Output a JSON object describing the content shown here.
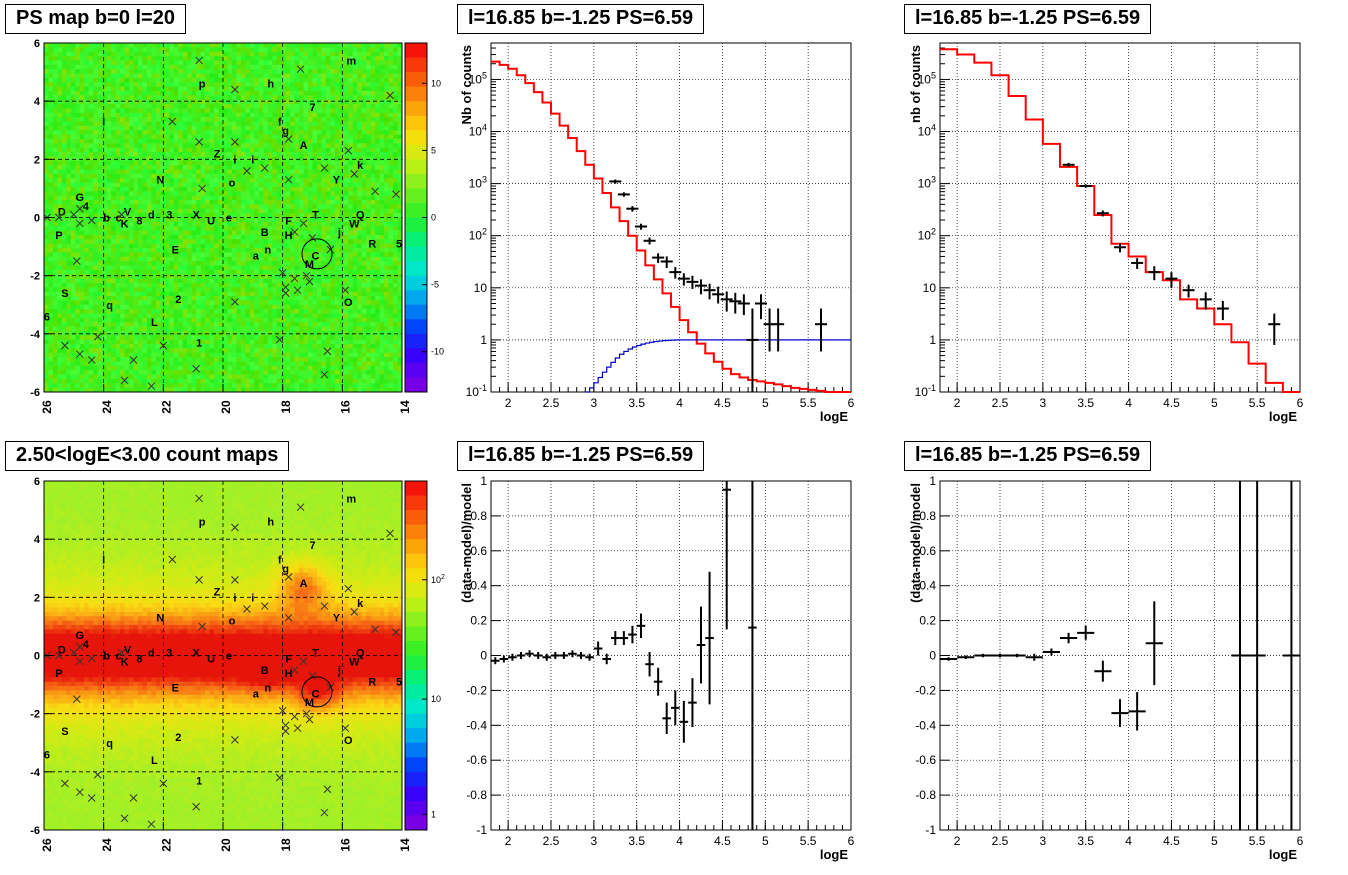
{
  "panels": {
    "map_top_title": "PS map b=0 l=20",
    "map_bottom_title": "2.50<logE<3.00 count maps",
    "spec_title": "l=16.85 b=-1.25 PS=6.59"
  },
  "chart_data": [
    {
      "type": "heatmap",
      "title": "PS map b=0 l=20",
      "xlim": [
        26,
        14
      ],
      "ylim": [
        -6,
        6
      ],
      "x_ticks": [
        "26",
        "24",
        "22",
        "20",
        "18",
        "16",
        "14"
      ],
      "y_ticks": [
        "-6",
        "-4",
        "-2",
        "0",
        "2",
        "4",
        "6"
      ],
      "colorbar_ticks": [
        "-10",
        "-5",
        "0",
        "5",
        "10"
      ],
      "colorbar_range": [
        -13,
        13
      ],
      "grid": true,
      "source_labels": [
        {
          "t": "m",
          "x": 15.7,
          "y": 5.4
        },
        {
          "t": "p",
          "x": 20.7,
          "y": 4.6
        },
        {
          "t": "h",
          "x": 18.4,
          "y": 4.6
        },
        {
          "t": "7",
          "x": 17.0,
          "y": 3.8
        },
        {
          "t": "l",
          "x": 24.0,
          "y": 3.3
        },
        {
          "t": "f",
          "x": 18.1,
          "y": 3.3
        },
        {
          "t": "g",
          "x": 17.9,
          "y": 3.0
        },
        {
          "t": "A",
          "x": 17.3,
          "y": 2.5
        },
        {
          "t": "Z",
          "x": 20.2,
          "y": 2.2
        },
        {
          "t": "i",
          "x": 19.6,
          "y": 2.0
        },
        {
          "t": "i",
          "x": 19.0,
          "y": 2.0
        },
        {
          "t": "k",
          "x": 15.4,
          "y": 1.8
        },
        {
          "t": "N",
          "x": 22.1,
          "y": 1.3
        },
        {
          "t": "o",
          "x": 19.7,
          "y": 1.2
        },
        {
          "t": "Y",
          "x": 16.2,
          "y": 1.3
        },
        {
          "t": "G",
          "x": 24.8,
          "y": 0.7
        },
        {
          "t": "4",
          "x": 24.6,
          "y": 0.4
        },
        {
          "t": "D",
          "x": 25.4,
          "y": 0.2
        },
        {
          "t": "b",
          "x": 23.9,
          "y": 0.0
        },
        {
          "t": "c",
          "x": 23.5,
          "y": 0.0
        },
        {
          "t": "V",
          "x": 23.2,
          "y": 0.2
        },
        {
          "t": "K",
          "x": 23.3,
          "y": -0.2
        },
        {
          "t": "8",
          "x": 22.8,
          "y": -0.1
        },
        {
          "t": "d",
          "x": 22.4,
          "y": 0.1
        },
        {
          "t": "3",
          "x": 21.8,
          "y": 0.1
        },
        {
          "t": "X",
          "x": 20.9,
          "y": 0.1
        },
        {
          "t": "U",
          "x": 20.4,
          "y": -0.1
        },
        {
          "t": "e",
          "x": 19.8,
          "y": 0.0
        },
        {
          "t": "F",
          "x": 17.8,
          "y": -0.1
        },
        {
          "t": "T",
          "x": 16.9,
          "y": 0.1
        },
        {
          "t": "Q",
          "x": 15.4,
          "y": 0.1
        },
        {
          "t": "W",
          "x": 15.6,
          "y": -0.2
        },
        {
          "t": "P",
          "x": 25.5,
          "y": -0.6
        },
        {
          "t": "B",
          "x": 18.6,
          "y": -0.5
        },
        {
          "t": "H",
          "x": 17.8,
          "y": -0.6
        },
        {
          "t": "j",
          "x": 16.1,
          "y": -0.5
        },
        {
          "t": "R",
          "x": 15.0,
          "y": -0.9
        },
        {
          "t": "5",
          "x": 14.1,
          "y": -0.9
        },
        {
          "t": "E",
          "x": 21.6,
          "y": -1.1
        },
        {
          "t": "n",
          "x": 18.5,
          "y": -1.1
        },
        {
          "t": "a",
          "x": 18.9,
          "y": -1.3
        },
        {
          "t": "C",
          "x": 16.9,
          "y": -1.3
        },
        {
          "t": "M",
          "x": 17.1,
          "y": -1.6
        },
        {
          "t": "S",
          "x": 25.3,
          "y": -2.6
        },
        {
          "t": "2",
          "x": 21.5,
          "y": -2.8
        },
        {
          "t": "q",
          "x": 23.8,
          "y": -3.0
        },
        {
          "t": "O",
          "x": 15.8,
          "y": -2.9
        },
        {
          "t": "6",
          "x": 25.9,
          "y": -3.4
        },
        {
          "t": "L",
          "x": 22.3,
          "y": -3.6
        },
        {
          "t": "1",
          "x": 20.8,
          "y": -4.3
        }
      ],
      "circle": {
        "x": 16.85,
        "y": -1.25
      }
    },
    {
      "type": "heatmap",
      "title": "2.50<logE<3.00 count maps",
      "xlim": [
        26,
        14
      ],
      "ylim": [
        -6,
        6
      ],
      "x_ticks": [
        "26",
        "24",
        "22",
        "20",
        "18",
        "16",
        "14"
      ],
      "y_ticks": [
        "-6",
        "-4",
        "-2",
        "0",
        "2",
        "4",
        "6"
      ],
      "colorbar_ticks": [
        "1",
        "10",
        "10^2"
      ],
      "colorbar_scale": "log",
      "grid": true
    },
    {
      "type": "line",
      "title": "l=16.85 b=-1.25 PS=6.59",
      "xlabel": "logE",
      "ylabel": "Nb of counts",
      "xlim": [
        1.8,
        6.0
      ],
      "ylim": [
        0.1,
        500000
      ],
      "yscale": "log",
      "x_ticks": [
        "2",
        "2.5",
        "3",
        "3.5",
        "4",
        "4.5",
        "5",
        "5.5",
        "6"
      ],
      "y_ticks": [
        "10^-1",
        "1",
        "10",
        "10^2",
        "10^3",
        "10^4",
        "10^5"
      ],
      "grid": true,
      "series": [
        {
          "color": "#ff0000",
          "step_width": 0.1,
          "x": [
            1.8,
            1.9,
            2.0,
            2.1,
            2.2,
            2.3,
            2.4,
            2.5,
            2.6,
            2.7,
            2.8,
            2.9,
            3.0,
            3.1,
            3.2,
            3.3,
            3.4,
            3.5,
            3.6,
            3.7,
            3.8,
            3.9,
            4.0,
            4.1,
            4.2,
            4.3,
            4.4,
            4.5,
            4.6,
            4.7,
            4.8,
            4.9,
            5.0,
            5.1,
            5.2,
            5.3,
            5.4,
            5.5,
            5.6,
            5.7,
            5.8,
            5.9
          ],
          "values": [
            220000,
            190000,
            160000,
            120000,
            85000,
            57000,
            36000,
            22000,
            13000,
            7500,
            4200,
            2300,
            1250,
            660,
            350,
            190,
            100,
            52,
            27,
            14.5,
            7.8,
            4.3,
            2.4,
            1.4,
            0.85,
            0.55,
            0.38,
            0.28,
            0.22,
            0.19,
            0.17,
            0.16,
            0.15,
            0.14,
            0.13,
            0.12,
            0.115,
            0.11,
            0.105,
            0.1,
            0.1,
            0.1
          ]
        },
        {
          "color": "#0000cc",
          "step_width": 0.05,
          "x": [
            2.9,
            2.95,
            3.0,
            3.05,
            3.1,
            3.15,
            3.2,
            3.25,
            3.3,
            3.35,
            3.4,
            3.45,
            3.5,
            3.55,
            3.6,
            3.65,
            3.7,
            3.75,
            3.8,
            3.85,
            3.9,
            3.95,
            4.0
          ],
          "values": [
            0.1,
            0.12,
            0.15,
            0.19,
            0.24,
            0.3,
            0.37,
            0.45,
            0.53,
            0.6,
            0.67,
            0.73,
            0.78,
            0.83,
            0.87,
            0.9,
            0.93,
            0.95,
            0.97,
            0.98,
            0.99,
            1.0,
            1.0
          ],
          "flat_to": 6.0,
          "flat_value": 1.0
        },
        {
          "color": "#000000",
          "type": "points",
          "x": [
            3.25,
            3.35,
            3.45,
            3.55,
            3.65,
            3.75,
            3.85,
            3.95,
            4.05,
            4.15,
            4.25,
            4.35,
            4.45,
            4.55,
            4.65,
            4.75,
            4.85,
            4.95,
            5.05,
            5.15,
            5.65
          ],
          "values": [
            1100,
            620,
            330,
            150,
            80,
            38,
            32,
            20,
            15,
            13,
            11,
            9,
            7.5,
            6,
            5.5,
            5,
            1,
            5,
            2,
            2,
            2
          ],
          "err_lo": [
            1000,
            560,
            290,
            130,
            68,
            30,
            24,
            15,
            11,
            9.5,
            7.5,
            6,
            5,
            3.5,
            3.2,
            3,
            0.1,
            2.5,
            0.6,
            0.6,
            0.6
          ],
          "err_hi": [
            1200,
            680,
            370,
            170,
            92,
            46,
            40,
            25,
            19,
            17,
            14.5,
            12,
            10.5,
            8.5,
            8,
            7.5,
            4,
            7.5,
            4,
            4,
            4
          ]
        }
      ]
    },
    {
      "type": "line",
      "title": "l=16.85 b=-1.25 PS=6.59",
      "xlabel": "logE",
      "ylabel": "nb of counts",
      "xlim": [
        1.8,
        6.0
      ],
      "ylim": [
        0.1,
        500000
      ],
      "yscale": "log",
      "x_ticks": [
        "2",
        "2.5",
        "3",
        "3.5",
        "4",
        "4.5",
        "5",
        "5.5",
        "6"
      ],
      "y_ticks": [
        "10^-1",
        "1",
        "10",
        "10^2",
        "10^3",
        "10^4",
        "10^5"
      ],
      "grid": true,
      "series": [
        {
          "color": "#ff0000",
          "step_width": 0.2,
          "x": [
            1.8,
            2.0,
            2.2,
            2.4,
            2.6,
            2.8,
            3.0,
            3.2,
            3.4,
            3.6,
            3.8,
            4.0,
            4.2,
            4.4,
            4.6,
            4.8,
            5.0,
            5.2,
            5.4,
            5.6,
            5.8
          ],
          "values": [
            380000,
            300000,
            210000,
            120000,
            48000,
            17000,
            5800,
            2100,
            900,
            250,
            70,
            40,
            20,
            14,
            6,
            4,
            2,
            0.9,
            0.35,
            0.15,
            0.1
          ]
        },
        {
          "color": "#000000",
          "type": "points",
          "x": [
            3.3,
            3.5,
            3.7,
            3.9,
            4.1,
            4.3,
            4.5,
            4.7,
            4.9,
            5.1,
            5.7
          ],
          "values": [
            2300,
            900,
            270,
            60,
            30,
            20,
            15,
            9,
            6,
            4,
            2
          ],
          "err_lo": [
            2100,
            830,
            235,
            48,
            23,
            14,
            10,
            6.5,
            3.8,
            2.4,
            0.8
          ],
          "err_hi": [
            2500,
            970,
            305,
            72,
            37,
            26,
            20,
            11.5,
            8.2,
            5.6,
            3.2
          ]
        }
      ]
    },
    {
      "type": "scatter",
      "title": "l=16.85 b=-1.25 PS=6.59",
      "xlabel": "logE",
      "ylabel": "(data-model)/model",
      "xlim": [
        1.8,
        6.0
      ],
      "ylim": [
        -1,
        1
      ],
      "x_ticks": [
        "2",
        "2.5",
        "3",
        "3.5",
        "4",
        "4.5",
        "5",
        "5.5",
        "6"
      ],
      "y_ticks": [
        "-1",
        "-0.8",
        "-0.6",
        "-0.4",
        "-0.2",
        "0",
        "0.2",
        "0.4",
        "0.6",
        "0.8",
        "1"
      ],
      "grid": true,
      "series": [
        {
          "color": "#000000",
          "xerr": 0.05,
          "x": [
            1.85,
            1.95,
            2.05,
            2.15,
            2.25,
            2.35,
            2.45,
            2.55,
            2.65,
            2.75,
            2.85,
            2.95,
            3.05,
            3.15,
            3.25,
            3.35,
            3.45,
            3.55,
            3.65,
            3.75,
            3.85,
            3.95,
            4.05,
            4.15,
            4.25,
            4.35,
            4.55,
            4.85
          ],
          "values": [
            -0.03,
            -0.02,
            -0.01,
            0.0,
            0.01,
            0.0,
            -0.01,
            0.0,
            0.0,
            0.01,
            0.0,
            -0.01,
            0.04,
            -0.02,
            0.1,
            0.1,
            0.12,
            0.17,
            -0.05,
            -0.15,
            -0.36,
            -0.3,
            -0.38,
            -0.27,
            0.06,
            0.1,
            0.95,
            0.16
          ],
          "err": [
            0.02,
            0.02,
            0.02,
            0.02,
            0.02,
            0.02,
            0.02,
            0.02,
            0.02,
            0.02,
            0.02,
            0.02,
            0.04,
            0.03,
            0.04,
            0.04,
            0.05,
            0.07,
            0.07,
            0.08,
            0.09,
            0.1,
            0.12,
            0.14,
            0.22,
            0.38,
            0.8,
            1.2
          ]
        }
      ]
    },
    {
      "type": "scatter",
      "title": "l=16.85 b=-1.25 PS=6.59",
      "xlabel": "logE",
      "ylabel": "(data-model)/model",
      "xlim": [
        1.8,
        6.0
      ],
      "ylim": [
        -1,
        1
      ],
      "x_ticks": [
        "2",
        "2.5",
        "3",
        "3.5",
        "4",
        "4.5",
        "5",
        "5.5",
        "6"
      ],
      "y_ticks": [
        "-1",
        "-0.8",
        "-0.6",
        "-0.4",
        "-0.2",
        "0",
        "0.2",
        "0.4",
        "0.6",
        "0.8",
        "1"
      ],
      "grid": true,
      "series": [
        {
          "color": "#000000",
          "xerr": 0.1,
          "x": [
            1.9,
            2.1,
            2.3,
            2.5,
            2.7,
            2.9,
            3.1,
            3.3,
            3.5,
            3.7,
            3.9,
            4.1,
            4.3,
            5.3,
            5.5,
            5.9
          ],
          "values": [
            -0.02,
            -0.01,
            0.0,
            0.0,
            0.0,
            -0.01,
            0.02,
            0.1,
            0.13,
            -0.09,
            -0.33,
            -0.32,
            0.07,
            0.0,
            0.0,
            0.0
          ],
          "err": [
            0.01,
            0.01,
            0.01,
            0.01,
            0.01,
            0.02,
            0.02,
            0.03,
            0.04,
            0.06,
            0.08,
            0.11,
            0.24,
            2.0,
            2.0,
            2.0
          ]
        }
      ]
    }
  ]
}
